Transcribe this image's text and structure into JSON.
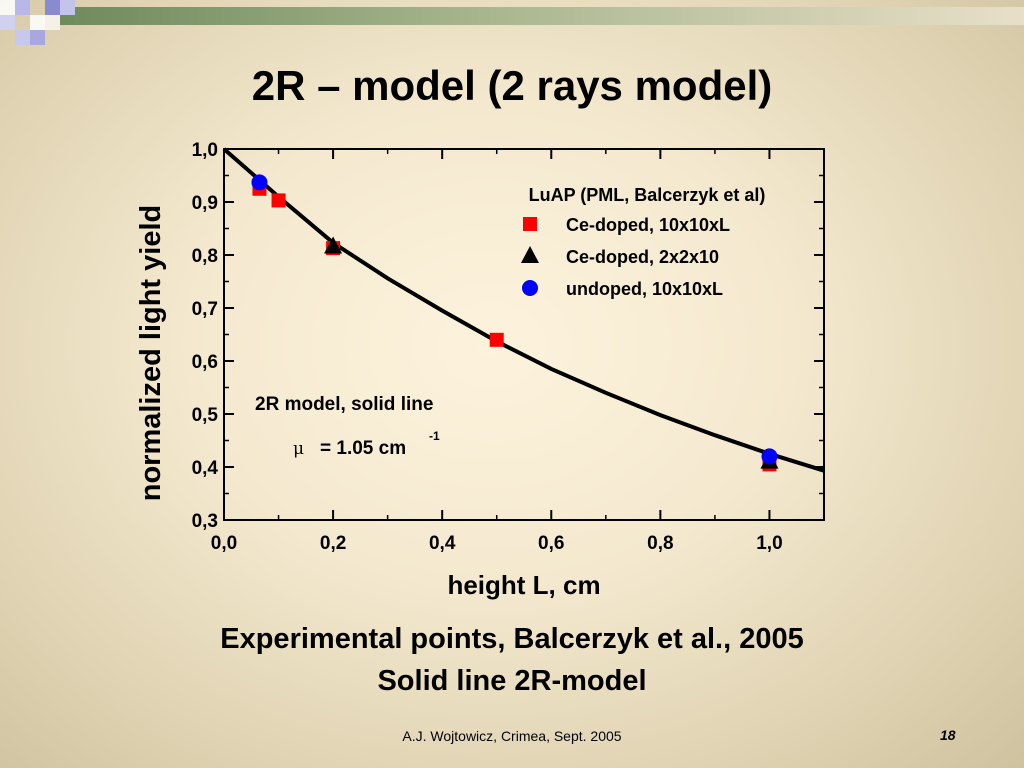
{
  "slide": {
    "title": "2R – model (2 rays model)",
    "caption_line1": "Experimental points, Balcerzyk et al., 2005",
    "caption_line2": "Solid line 2R-model",
    "footer": "A.J. Wojtowicz, Crimea, Sept. 2005",
    "page_number": "18"
  },
  "colors": {
    "square": "#ff0000",
    "triangle": "#000000",
    "circle": "#0000ff",
    "line": "#000000"
  },
  "chart_data": {
    "type": "scatter",
    "xlabel": "height L, cm",
    "ylabel": "normalized light yield",
    "xlim": [
      0,
      1.1
    ],
    "ylim": [
      0.3,
      1.0
    ],
    "x_ticks": [
      0.0,
      0.2,
      0.4,
      0.6,
      0.8,
      1.0
    ],
    "y_ticks": [
      0.3,
      0.4,
      0.5,
      0.6,
      0.7,
      0.8,
      0.9,
      1.0
    ],
    "x_tick_labels": [
      "0,0",
      "0,2",
      "0,4",
      "0,6",
      "0,8",
      "1,0"
    ],
    "y_tick_labels": [
      "0,3",
      "0,4",
      "0,5",
      "0,6",
      "0,7",
      "0,8",
      "0,9",
      "1,0"
    ],
    "legend_title": "LuAP (PML, Balcerzyk et al)",
    "legend_placement": "top-right",
    "series": [
      {
        "name": "Ce-doped, 10x10xL",
        "marker": "square",
        "points": [
          [
            0.065,
            0.925
          ],
          [
            0.1,
            0.903
          ],
          [
            0.2,
            0.813
          ],
          [
            0.5,
            0.64
          ],
          [
            1.0,
            0.405
          ]
        ]
      },
      {
        "name": "Ce-doped, 2x2x10",
        "marker": "triangle",
        "points": [
          [
            0.2,
            0.818
          ],
          [
            1.0,
            0.412
          ]
        ]
      },
      {
        "name": "undoped, 10x10xL",
        "marker": "circle",
        "points": [
          [
            0.065,
            0.937
          ],
          [
            1.0,
            0.42
          ]
        ]
      }
    ],
    "model_line": {
      "points": [
        [
          0.0,
          1.0
        ],
        [
          0.1,
          0.91
        ],
        [
          0.2,
          0.823
        ],
        [
          0.3,
          0.756
        ],
        [
          0.4,
          0.695
        ],
        [
          0.5,
          0.637
        ],
        [
          0.6,
          0.585
        ],
        [
          0.7,
          0.54
        ],
        [
          0.8,
          0.498
        ],
        [
          0.9,
          0.46
        ],
        [
          1.0,
          0.425
        ],
        [
          1.1,
          0.393
        ]
      ]
    },
    "annotation_line1": "2R model, solid line",
    "annotation_mu_symbol": "μ",
    "annotation_mu_value": "= 1.05 cm",
    "annotation_mu_exponent": "-1"
  }
}
